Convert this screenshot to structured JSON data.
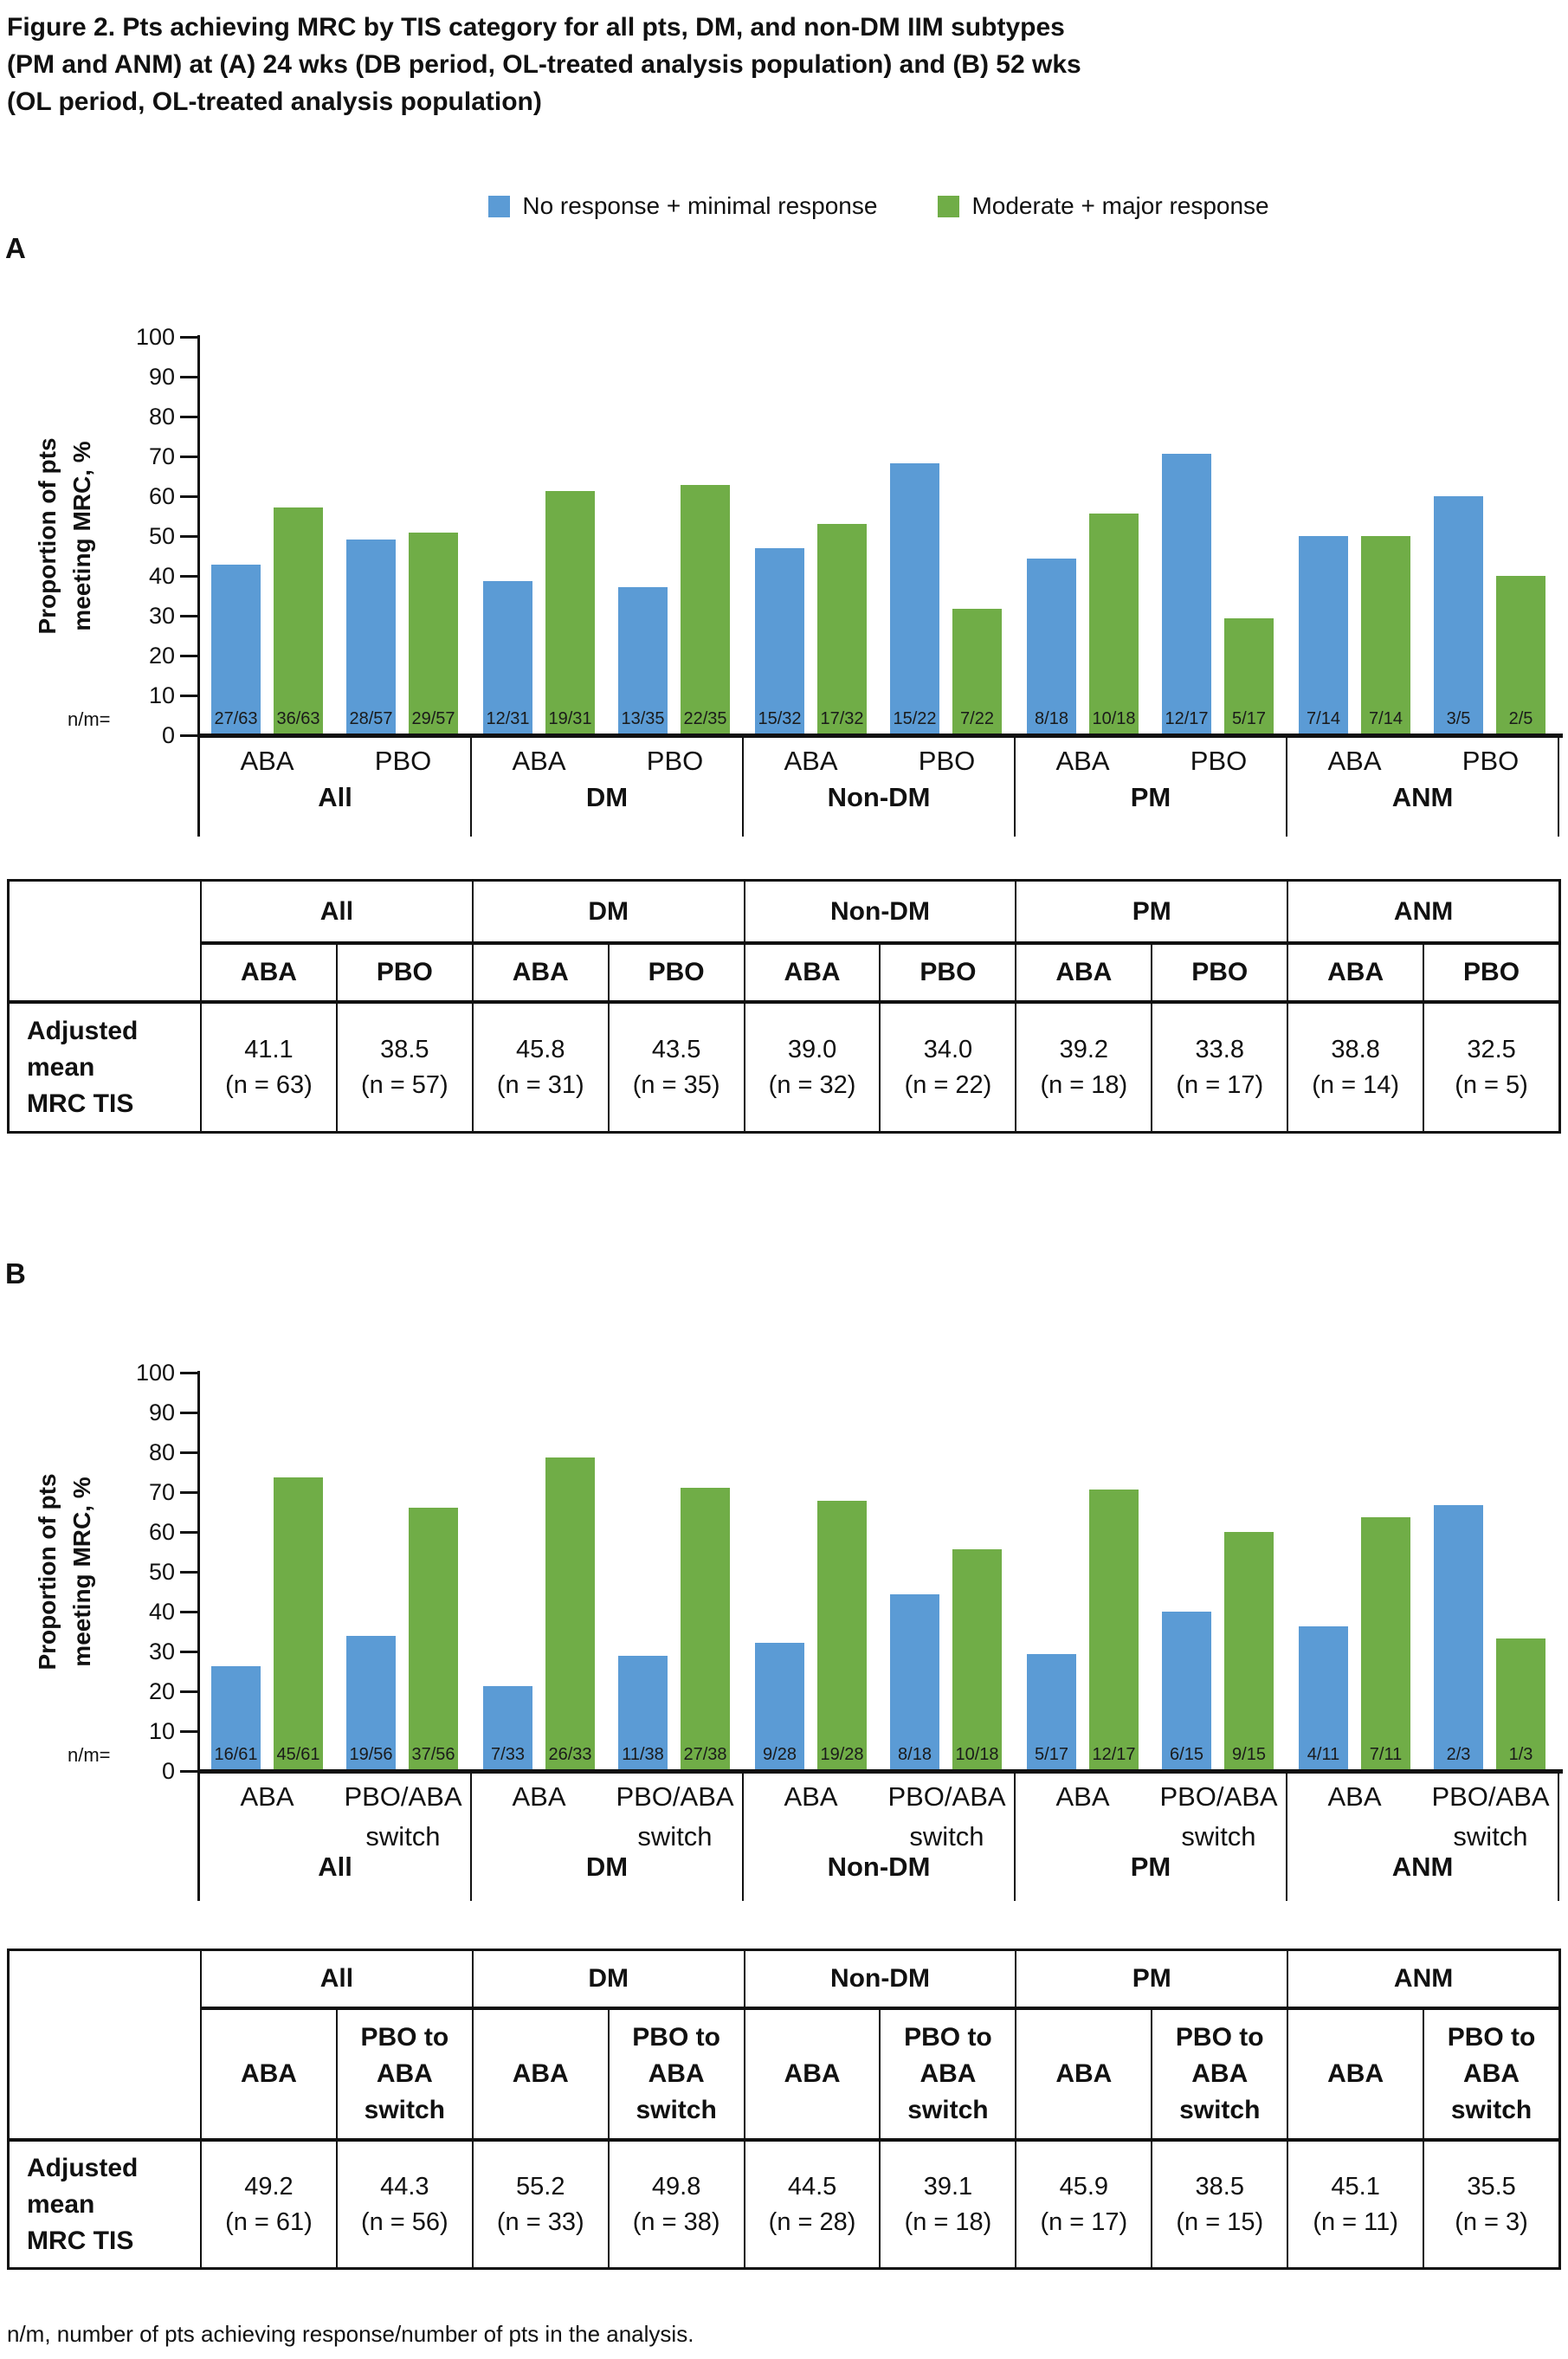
{
  "title_lines": [
    "Figure 2. Pts achieving MRC by TIS category for all pts, DM, and non-DM IIM subtypes",
    "(PM and ANM) at (A) 24 wks (DB period, OL-treated analysis population) and (B) 52 wks",
    "(OL period, OL-treated analysis population)"
  ],
  "legend": {
    "items": [
      {
        "label": "No response + minimal response",
        "color": "#5b9bd5"
      },
      {
        "label": "Moderate + major response",
        "color": "#70ad47"
      }
    ]
  },
  "axis": {
    "ylabel": "Proportion of pts meeting MRC, %",
    "ylabel_lines": [
      "Proportion of pts",
      "meeting MRC, %"
    ],
    "yticks": [
      100,
      90,
      80,
      70,
      60,
      50,
      40,
      30,
      20,
      10,
      0
    ],
    "nm_prefix": "n/m="
  },
  "footnote": "n/m, number of pts achieving response/number of pts in the analysis.",
  "chart_data": [
    {
      "type": "bar",
      "panel_label": "A",
      "ylabel": "Proportion of pts meeting MRC, %",
      "ylim": [
        0,
        100
      ],
      "yticks": [
        0,
        10,
        20,
        30,
        40,
        50,
        60,
        70,
        80,
        90,
        100
      ],
      "series_names": [
        "No response + minimal response",
        "Moderate + major response"
      ],
      "colors": [
        "#5b9bd5",
        "#70ad47"
      ],
      "groups": [
        "All",
        "DM",
        "Non-DM",
        "PM",
        "ANM"
      ],
      "arm_labels": [
        [
          "ABA"
        ],
        [
          "PBO"
        ]
      ],
      "columns": [
        {
          "group": "All",
          "arm": "ABA",
          "bars": [
            {
              "nm": "27/63",
              "pct": 42.9
            },
            {
              "nm": "36/63",
              "pct": 57.1
            }
          ]
        },
        {
          "group": "All",
          "arm": "PBO",
          "bars": [
            {
              "nm": "28/57",
              "pct": 49.1
            },
            {
              "nm": "29/57",
              "pct": 50.9
            }
          ]
        },
        {
          "group": "DM",
          "arm": "ABA",
          "bars": [
            {
              "nm": "12/31",
              "pct": 38.7
            },
            {
              "nm": "19/31",
              "pct": 61.3
            }
          ]
        },
        {
          "group": "DM",
          "arm": "PBO",
          "bars": [
            {
              "nm": "13/35",
              "pct": 37.1
            },
            {
              "nm": "22/35",
              "pct": 62.9
            }
          ]
        },
        {
          "group": "Non-DM",
          "arm": "ABA",
          "bars": [
            {
              "nm": "15/32",
              "pct": 46.9
            },
            {
              "nm": "17/32",
              "pct": 53.1
            }
          ]
        },
        {
          "group": "Non-DM",
          "arm": "PBO",
          "bars": [
            {
              "nm": "15/22",
              "pct": 68.2
            },
            {
              "nm": "7/22",
              "pct": 31.8
            }
          ]
        },
        {
          "group": "PM",
          "arm": "ABA",
          "bars": [
            {
              "nm": "8/18",
              "pct": 44.4
            },
            {
              "nm": "10/18",
              "pct": 55.6
            }
          ]
        },
        {
          "group": "PM",
          "arm": "PBO",
          "bars": [
            {
              "nm": "12/17",
              "pct": 70.6
            },
            {
              "nm": "5/17",
              "pct": 29.4
            }
          ]
        },
        {
          "group": "ANM",
          "arm": "ABA",
          "bars": [
            {
              "nm": "7/14",
              "pct": 50.0
            },
            {
              "nm": "7/14",
              "pct": 50.0
            }
          ]
        },
        {
          "group": "ANM",
          "arm": "PBO",
          "bars": [
            {
              "nm": "3/5",
              "pct": 60.0
            },
            {
              "nm": "2/5",
              "pct": 40.0
            }
          ]
        }
      ],
      "table": {
        "row_label": "Adjusted mean MRC TIS",
        "groups": [
          "All",
          "DM",
          "Non-DM",
          "PM",
          "ANM"
        ],
        "arm_headers": [
          "ABA",
          "PBO"
        ],
        "cells": [
          {
            "value": "41.1",
            "n": "(n = 63)"
          },
          {
            "value": "38.5",
            "n": "(n = 57)"
          },
          {
            "value": "45.8",
            "n": "(n = 31)"
          },
          {
            "value": "43.5",
            "n": "(n = 35)"
          },
          {
            "value": "39.0",
            "n": "(n = 32)"
          },
          {
            "value": "34.0",
            "n": "(n = 22)"
          },
          {
            "value": "39.2",
            "n": "(n = 18)"
          },
          {
            "value": "33.8",
            "n": "(n = 17)"
          },
          {
            "value": "38.8",
            "n": "(n = 14)"
          },
          {
            "value": "32.5",
            "n": "(n = 5)"
          }
        ]
      }
    },
    {
      "type": "bar",
      "panel_label": "B",
      "ylabel": "Proportion of pts meeting MRC, %",
      "ylim": [
        0,
        100
      ],
      "yticks": [
        0,
        10,
        20,
        30,
        40,
        50,
        60,
        70,
        80,
        90,
        100
      ],
      "series_names": [
        "No response + minimal response",
        "Moderate + major response"
      ],
      "colors": [
        "#5b9bd5",
        "#70ad47"
      ],
      "groups": [
        "All",
        "DM",
        "Non-DM",
        "PM",
        "ANM"
      ],
      "arm_labels": [
        [
          "ABA"
        ],
        [
          "PBO/ABA",
          "switch"
        ]
      ],
      "columns": [
        {
          "group": "All",
          "arm": "ABA",
          "bars": [
            {
              "nm": "16/61",
              "pct": 26.2
            },
            {
              "nm": "45/61",
              "pct": 73.8
            }
          ]
        },
        {
          "group": "All",
          "arm": "PBO/ABA switch",
          "bars": [
            {
              "nm": "19/56",
              "pct": 33.9
            },
            {
              "nm": "37/56",
              "pct": 66.1
            }
          ]
        },
        {
          "group": "DM",
          "arm": "ABA",
          "bars": [
            {
              "nm": "7/33",
              "pct": 21.2
            },
            {
              "nm": "26/33",
              "pct": 78.8
            }
          ]
        },
        {
          "group": "DM",
          "arm": "PBO/ABA switch",
          "bars": [
            {
              "nm": "11/38",
              "pct": 28.9
            },
            {
              "nm": "27/38",
              "pct": 71.1
            }
          ]
        },
        {
          "group": "Non-DM",
          "arm": "ABA",
          "bars": [
            {
              "nm": "9/28",
              "pct": 32.1
            },
            {
              "nm": "19/28",
              "pct": 67.9
            }
          ]
        },
        {
          "group": "Non-DM",
          "arm": "PBO/ABA switch",
          "bars": [
            {
              "nm": "8/18",
              "pct": 44.4
            },
            {
              "nm": "10/18",
              "pct": 55.6
            }
          ]
        },
        {
          "group": "PM",
          "arm": "ABA",
          "bars": [
            {
              "nm": "5/17",
              "pct": 29.4
            },
            {
              "nm": "12/17",
              "pct": 70.6
            }
          ]
        },
        {
          "group": "PM",
          "arm": "PBO/ABA switch",
          "bars": [
            {
              "nm": "6/15",
              "pct": 40.0
            },
            {
              "nm": "9/15",
              "pct": 60.0
            }
          ]
        },
        {
          "group": "ANM",
          "arm": "ABA",
          "bars": [
            {
              "nm": "4/11",
              "pct": 36.4
            },
            {
              "nm": "7/11",
              "pct": 63.6
            }
          ]
        },
        {
          "group": "ANM",
          "arm": "PBO/ABA switch",
          "bars": [
            {
              "nm": "2/3",
              "pct": 66.7
            },
            {
              "nm": "1/3",
              "pct": 33.3
            }
          ]
        }
      ],
      "table": {
        "row_label": "Adjusted mean MRC TIS",
        "groups": [
          "All",
          "DM",
          "Non-DM",
          "PM",
          "ANM"
        ],
        "arm_headers": [
          "ABA",
          "PBO to ABA switch"
        ],
        "cells": [
          {
            "value": "49.2",
            "n": "(n = 61)"
          },
          {
            "value": "44.3",
            "n": "(n = 56)"
          },
          {
            "value": "55.2",
            "n": "(n = 33)"
          },
          {
            "value": "49.8",
            "n": "(n = 38)"
          },
          {
            "value": "44.5",
            "n": "(n = 28)"
          },
          {
            "value": "39.1",
            "n": "(n = 18)"
          },
          {
            "value": "45.9",
            "n": "(n = 17)"
          },
          {
            "value": "38.5",
            "n": "(n = 15)"
          },
          {
            "value": "45.1",
            "n": "(n = 11)"
          },
          {
            "value": "35.5",
            "n": "(n = 3)"
          }
        ]
      }
    }
  ]
}
